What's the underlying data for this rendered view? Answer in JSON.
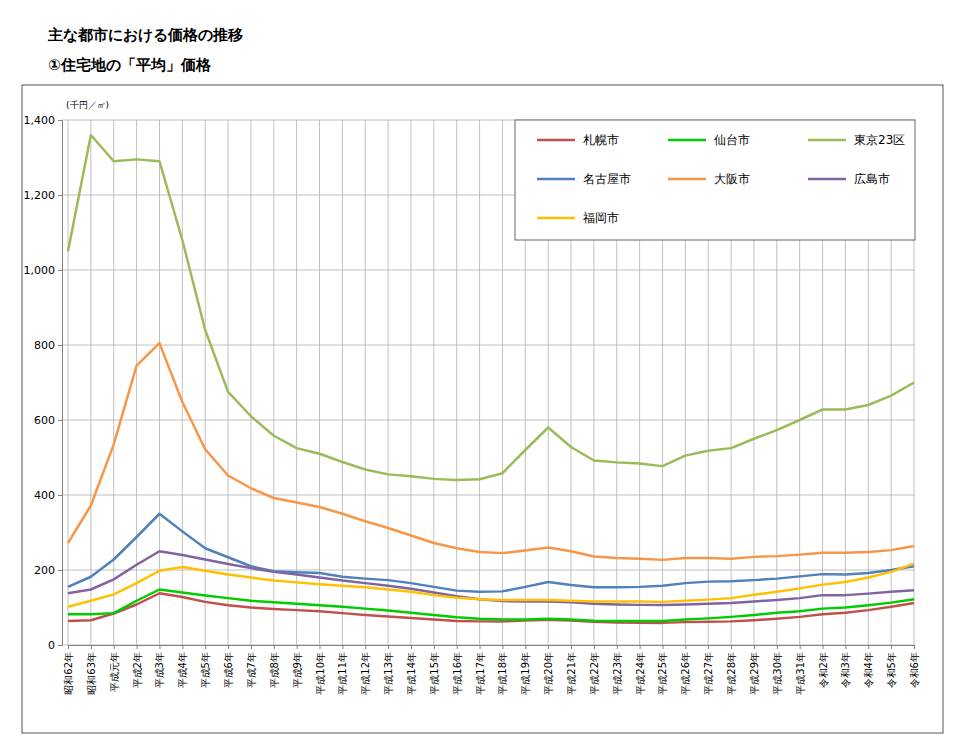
{
  "chart_data": {
    "type": "line",
    "title": "主な都市における価格の推移",
    "subtitle": "①住宅地の「平均」価格",
    "ylabel": "(千円／㎡)",
    "categories": [
      "昭和62年",
      "昭和63年",
      "平成元年",
      "平成2年",
      "平成3年",
      "平成4年",
      "平成5年",
      "平成6年",
      "平成7年",
      "平成8年",
      "平成9年",
      "平成10年",
      "平成11年",
      "平成12年",
      "平成13年",
      "平成14年",
      "平成15年",
      "平成16年",
      "平成17年",
      "平成18年",
      "平成19年",
      "平成20年",
      "平成21年",
      "平成22年",
      "平成23年",
      "平成24年",
      "平成25年",
      "平成26年",
      "平成27年",
      "平成28年",
      "平成29年",
      "平成30年",
      "平成31年",
      "令和2年",
      "令和3年",
      "令和4年",
      "令和5年",
      "令和6年"
    ],
    "series": [
      {
        "name": "札幌市",
        "color": "#c0504d",
        "values": [
          64,
          66,
          84,
          108,
          138,
          128,
          115,
          106,
          100,
          96,
          93,
          90,
          85,
          80,
          76,
          72,
          68,
          64,
          63,
          63,
          65,
          67,
          65,
          62,
          60,
          59,
          59,
          61,
          62,
          63,
          66,
          70,
          75,
          82,
          86,
          93,
          102,
          112
        ]
      },
      {
        "name": "仙台市",
        "color": "#00cc00",
        "values": [
          82,
          82,
          85,
          118,
          148,
          140,
          132,
          125,
          118,
          114,
          110,
          106,
          102,
          97,
          92,
          86,
          80,
          74,
          70,
          68,
          68,
          70,
          68,
          65,
          64,
          64,
          64,
          68,
          71,
          75,
          80,
          86,
          90,
          97,
          100,
          106,
          113,
          122
        ]
      },
      {
        "name": "東京23区",
        "color": "#9bbb59",
        "values": [
          1050,
          1360,
          1290,
          1295,
          1290,
          1080,
          840,
          675,
          610,
          558,
          525,
          510,
          488,
          468,
          455,
          450,
          443,
          440,
          442,
          458,
          520,
          580,
          528,
          492,
          487,
          484,
          477,
          505,
          518,
          525,
          550,
          573,
          600,
          628,
          628,
          640,
          665,
          700
        ]
      },
      {
        "name": "名古屋市",
        "color": "#4f81bd",
        "values": [
          155,
          182,
          228,
          288,
          350,
          303,
          258,
          234,
          210,
          197,
          194,
          192,
          182,
          177,
          173,
          165,
          155,
          145,
          142,
          143,
          155,
          168,
          160,
          154,
          154,
          155,
          158,
          165,
          169,
          170,
          173,
          177,
          183,
          189,
          188,
          192,
          200,
          210
        ]
      },
      {
        "name": "大阪市",
        "color": "#f79646",
        "values": [
          272,
          372,
          535,
          745,
          805,
          648,
          522,
          452,
          418,
          392,
          380,
          368,
          350,
          330,
          312,
          292,
          272,
          258,
          248,
          245,
          252,
          260,
          250,
          236,
          232,
          230,
          227,
          232,
          232,
          230,
          235,
          237,
          241,
          246,
          246,
          248,
          253,
          264
        ]
      },
      {
        "name": "広島市",
        "color": "#8064a2",
        "values": [
          138,
          148,
          175,
          214,
          250,
          240,
          228,
          216,
          205,
          195,
          188,
          180,
          172,
          165,
          158,
          150,
          140,
          130,
          122,
          117,
          116,
          116,
          114,
          110,
          108,
          107,
          107,
          108,
          110,
          112,
          116,
          120,
          125,
          133,
          133,
          137,
          142,
          146
        ]
      },
      {
        "name": "福岡市",
        "color": "#ffc000",
        "values": [
          102,
          118,
          135,
          165,
          198,
          208,
          198,
          188,
          180,
          172,
          167,
          162,
          158,
          154,
          148,
          142,
          133,
          126,
          122,
          120,
          120,
          120,
          118,
          116,
          116,
          116,
          115,
          118,
          121,
          125,
          134,
          142,
          151,
          161,
          168,
          180,
          195,
          217
        ]
      }
    ],
    "ylim": [
      0,
      1400
    ],
    "yticks": [
      0,
      200,
      400,
      600,
      800,
      {
        "value": 1000,
        "label": "1,000"
      },
      {
        "value": 1200,
        "label": "1,200"
      },
      {
        "value": 1400,
        "label": "1,400"
      }
    ],
    "grid": true,
    "legend": "top-right"
  }
}
